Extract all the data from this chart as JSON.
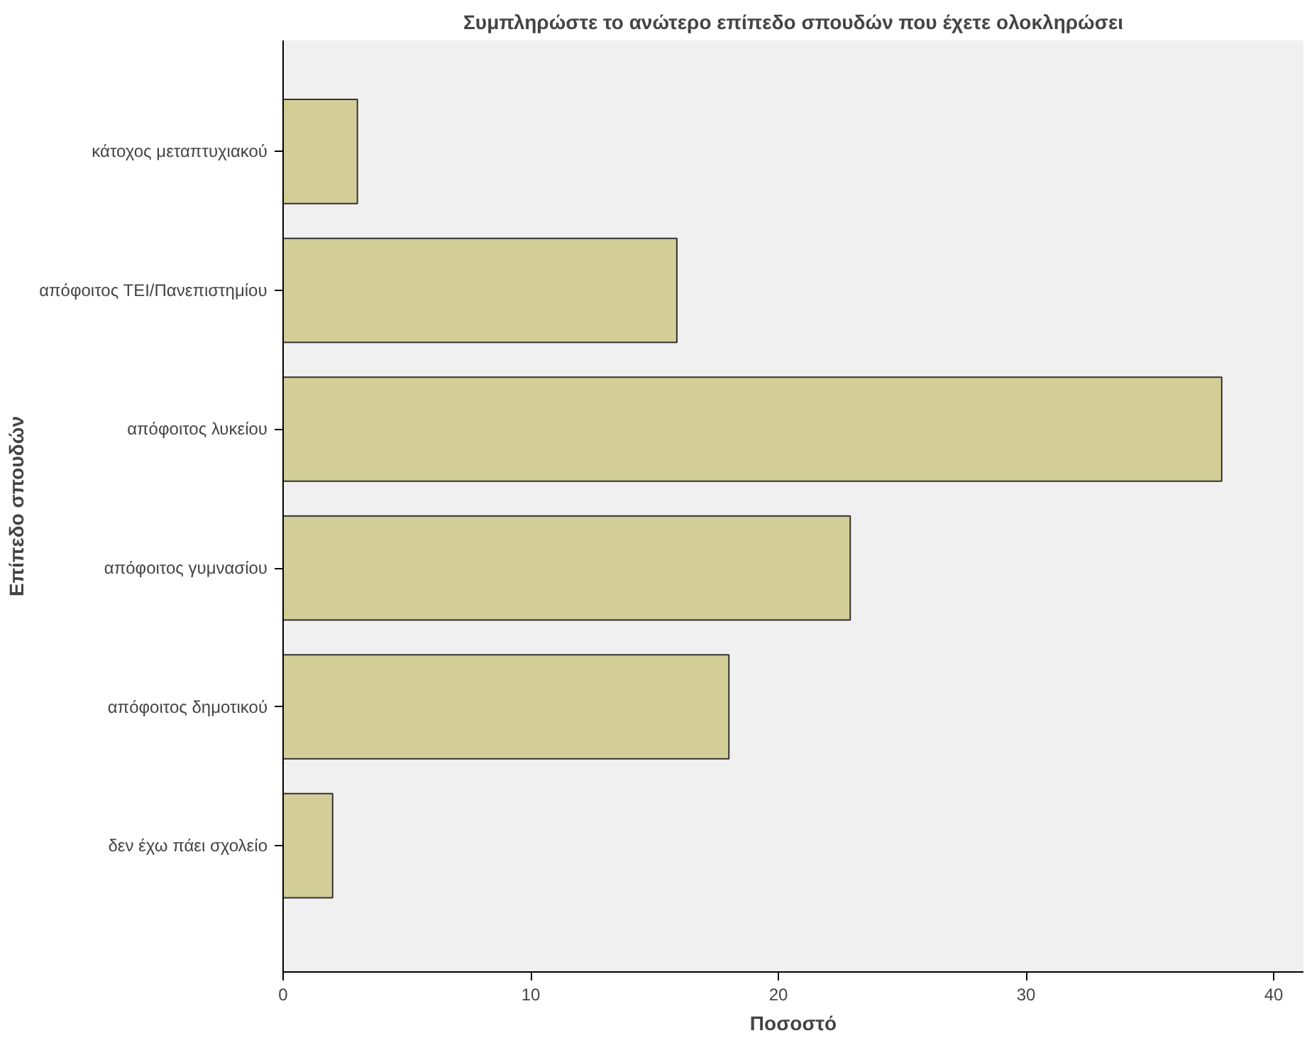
{
  "chart_data": {
    "type": "bar",
    "orientation": "horizontal",
    "title": "Συμπληρώστε το ανώτερο επίπεδο σπουδών που έχετε ολοκληρώσει",
    "xlabel": "Ποσοστό",
    "ylabel": "Επίπεδο σπουδών",
    "categories": [
      "κάτοχος μεταπτυχιακού",
      "απόφοιτος ΤΕΙ/Πανεπιστημίου",
      "απόφοιτος λυκείου",
      "απόφοιτος γυμνασίου",
      "απόφοιτος δημοτικού",
      "δεν έχω πάει σχολείο"
    ],
    "values": [
      3.0,
      15.9,
      37.9,
      22.9,
      18.0,
      2.0
    ],
    "color": "#d3ce98",
    "xlim": [
      0,
      41.2
    ],
    "xticks": [
      0,
      10,
      20,
      30,
      40
    ],
    "grid": false
  }
}
